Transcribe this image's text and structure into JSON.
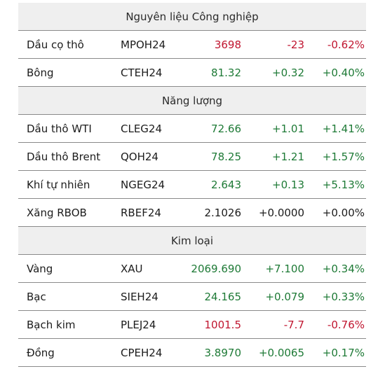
{
  "colors": {
    "up": "#1e7a36",
    "down": "#c0152f",
    "flat": "#1c1c1c"
  },
  "sections": [
    {
      "title": "Nguyên liệu Công nghiệp",
      "rows": [
        {
          "name": "Dầu cọ thô",
          "code": "MPOH24",
          "price": "3698",
          "change": "-23",
          "pct": "-0.62%",
          "dir": "down"
        },
        {
          "name": "Bông",
          "code": "CTEH24",
          "price": "81.32",
          "change": "+0.32",
          "pct": "+0.40%",
          "dir": "up"
        }
      ]
    },
    {
      "title": "Năng lượng",
      "rows": [
        {
          "name": "Dầu thô WTI",
          "code": "CLEG24",
          "price": "72.66",
          "change": "+1.01",
          "pct": "+1.41%",
          "dir": "up"
        },
        {
          "name": "Dầu thô Brent",
          "code": "QOH24",
          "price": "78.25",
          "change": "+1.21",
          "pct": "+1.57%",
          "dir": "up"
        },
        {
          "name": "Khí tự nhiên",
          "code": "NGEG24",
          "price": "2.643",
          "change": "+0.13",
          "pct": "+5.13%",
          "dir": "up"
        },
        {
          "name": "Xăng RBOB",
          "code": "RBEF24",
          "price": "2.1026",
          "change": "+0.0000",
          "pct": "+0.00%",
          "dir": "flat"
        }
      ]
    },
    {
      "title": "Kim loại",
      "rows": [
        {
          "name": "Vàng",
          "code": "XAU",
          "price": "2069.690",
          "change": "+7.100",
          "pct": "+0.34%",
          "dir": "up"
        },
        {
          "name": "Bạc",
          "code": "SIEH24",
          "price": "24.165",
          "change": "+0.079",
          "pct": "+0.33%",
          "dir": "up"
        },
        {
          "name": "Bạch kim",
          "code": "PLEJ24",
          "price": "1001.5",
          "change": "-7.7",
          "pct": "-0.76%",
          "dir": "down"
        },
        {
          "name": "Đồng",
          "code": "CPEH24",
          "price": "3.8970",
          "change": "+0.0065",
          "pct": "+0.17%",
          "dir": "up"
        }
      ]
    }
  ]
}
